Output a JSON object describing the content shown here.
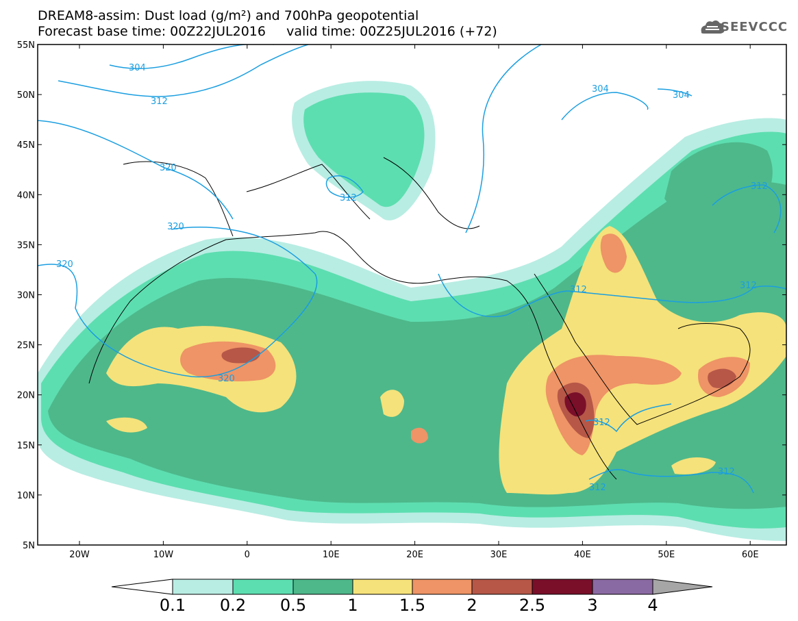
{
  "header": {
    "title_line1": "DREAM8-assim: Dust load (g/m²) and 700hPa geopotential",
    "title_line2": "Forecast base time: 00Z22JUL2016     valid time: 00Z25JUL2016 (+72)",
    "logo_text": "SEEVCCC"
  },
  "map": {
    "lat_ticks": [
      "55N",
      "50N",
      "45N",
      "40N",
      "35N",
      "30N",
      "25N",
      "20N",
      "15N",
      "10N",
      "5N"
    ],
    "lon_ticks": [
      "20W",
      "10W",
      "0",
      "10E",
      "20E",
      "30E",
      "40E",
      "50E",
      "60E"
    ],
    "contour_labels": [
      "304",
      "312",
      "320",
      "320",
      "320",
      "312",
      "304",
      "304",
      "312",
      "312",
      "312",
      "312",
      "312",
      "312",
      "320"
    ],
    "colors": {
      "c01": "#b8ede3",
      "c02": "#5ddeb0",
      "c05": "#4eb88b",
      "c1": "#f5e27a",
      "c15": "#ee9466",
      "c2": "#b65748",
      "c25": "#7a0f2a",
      "c3": "#8a6aa3",
      "c4": "#a6a6a6",
      "contour": "#1a9ee0"
    }
  },
  "colorbar": {
    "labels": [
      "0.1",
      "0.2",
      "0.5",
      "1",
      "1.5",
      "2",
      "2.5",
      "3",
      "4"
    ]
  }
}
